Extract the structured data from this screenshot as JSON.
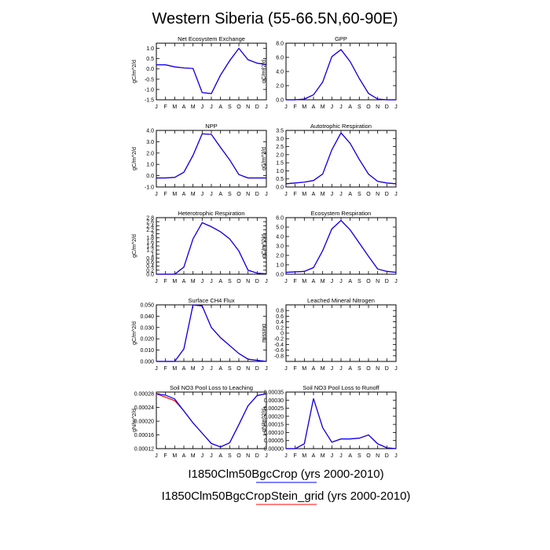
{
  "page_title": "Western Siberia (55-66.5N,60-90E)",
  "months": [
    "J",
    "F",
    "M",
    "A",
    "M",
    "J",
    "J",
    "A",
    "S",
    "O",
    "N",
    "D",
    "J"
  ],
  "legend": [
    {
      "label": "I1850Clm50BgcCrop (yrs 2000-2010)",
      "color": "#0000ff"
    },
    {
      "label": "I1850Clm50BgcCropStein_grid (yrs 2000-2010)",
      "color": "#ff0000"
    }
  ],
  "chart_data": [
    {
      "type": "line",
      "title": "Net Ecosystem Exchange",
      "ylabel": "gC/m^2/d",
      "ylim": [
        -1.5,
        1.25
      ],
      "yticks": [
        "1.0",
        "0.5",
        "0.0",
        "-0.5",
        "-1.0",
        "-1.5"
      ],
      "ytick_values": [
        1.0,
        0.5,
        0.0,
        -0.5,
        -1.0,
        -1.5
      ],
      "series": [
        {
          "values": [
            0.2,
            0.2,
            0.1,
            0.05,
            0.02,
            -1.15,
            -1.2,
            -0.3,
            0.4,
            1.0,
            0.45,
            0.28,
            0.22
          ]
        },
        {
          "values": [
            0.2,
            0.2,
            0.1,
            0.05,
            0.02,
            -1.15,
            -1.2,
            -0.3,
            0.4,
            1.0,
            0.45,
            0.28,
            0.22
          ]
        }
      ]
    },
    {
      "type": "line",
      "title": "GPP",
      "ylabel": "gC/m^2/d",
      "ylim": [
        0,
        8
      ],
      "yticks": [
        "8.0",
        "6.0",
        "4.0",
        "2.0",
        "0.0"
      ],
      "ytick_values": [
        8,
        6,
        4,
        2,
        0
      ],
      "series": [
        {
          "values": [
            0.0,
            0.0,
            0.1,
            0.7,
            2.5,
            6.1,
            7.1,
            5.4,
            3.0,
            0.9,
            0.1,
            0.0,
            0.0
          ]
        },
        {
          "values": [
            0.0,
            0.0,
            0.1,
            0.7,
            2.5,
            6.1,
            7.1,
            5.4,
            3.0,
            0.9,
            0.1,
            0.0,
            0.0
          ]
        }
      ]
    },
    {
      "type": "line",
      "title": "NPP",
      "ylabel": "gC/m^2/d",
      "ylim": [
        -1.0,
        4.0
      ],
      "yticks": [
        "4.0",
        "3.0",
        "2.0",
        "1.0",
        "0.0",
        "-1.0"
      ],
      "ytick_values": [
        4,
        3,
        2,
        1,
        0,
        -1
      ],
      "series": [
        {
          "values": [
            -0.2,
            -0.2,
            -0.15,
            0.3,
            1.8,
            3.7,
            3.65,
            2.5,
            1.4,
            0.1,
            -0.2,
            -0.2,
            -0.2
          ]
        },
        {
          "values": [
            -0.2,
            -0.2,
            -0.15,
            0.3,
            1.8,
            3.7,
            3.65,
            2.5,
            1.4,
            0.1,
            -0.2,
            -0.2,
            -0.2
          ]
        }
      ]
    },
    {
      "type": "line",
      "title": "Autotrophic Respiration",
      "ylabel": "gC/m^2/d",
      "ylim": [
        0,
        3.5
      ],
      "yticks": [
        "3.5",
        "3.0",
        "2.5",
        "2.0",
        "1.5",
        "1.0",
        "0.5",
        "0.0"
      ],
      "ytick_values": [
        3.5,
        3,
        2.5,
        2,
        1.5,
        1,
        0.5,
        0
      ],
      "series": [
        {
          "values": [
            0.2,
            0.25,
            0.3,
            0.4,
            0.8,
            2.3,
            3.35,
            2.7,
            1.7,
            0.8,
            0.35,
            0.25,
            0.2
          ]
        },
        {
          "values": [
            0.2,
            0.25,
            0.3,
            0.4,
            0.8,
            2.3,
            3.35,
            2.7,
            1.7,
            0.8,
            0.35,
            0.25,
            0.2
          ]
        }
      ]
    },
    {
      "type": "line",
      "title": "Heterotrophic Respiration",
      "ylabel": "gC/m^2/d",
      "ylim": [
        0,
        2.8
      ],
      "yticks": [
        "2.8",
        "2.6",
        "2.4",
        "2.2",
        "2",
        "1.8",
        "1.6",
        "1.4",
        "1.2",
        "1",
        "0.8",
        "0.6",
        "0.4",
        "0.2",
        "0.0"
      ],
      "ytick_values": [
        2.8,
        2.6,
        2.4,
        2.2,
        2.0,
        1.8,
        1.6,
        1.4,
        1.2,
        1.0,
        0.8,
        0.6,
        0.4,
        0.2,
        0.0
      ],
      "series": [
        {
          "values": [
            0.0,
            0.0,
            0.0,
            0.35,
            1.75,
            2.55,
            2.35,
            2.1,
            1.75,
            1.15,
            0.2,
            0.05,
            0.02
          ]
        },
        {
          "values": [
            0.0,
            0.0,
            0.0,
            0.35,
            1.75,
            2.55,
            2.35,
            2.1,
            1.75,
            1.15,
            0.2,
            0.05,
            0.02
          ]
        }
      ]
    },
    {
      "type": "line",
      "title": "Ecosystem Respiration",
      "ylabel": "gC/m^2/d",
      "ylim": [
        0,
        6
      ],
      "yticks": [
        "6.0",
        "5.0",
        "4.0",
        "3.0",
        "2.0",
        "1.0",
        "0.0"
      ],
      "ytick_values": [
        6,
        5,
        4,
        3,
        2,
        1,
        0
      ],
      "series": [
        {
          "values": [
            0.2,
            0.25,
            0.3,
            0.7,
            2.5,
            4.8,
            5.7,
            4.7,
            3.3,
            1.9,
            0.55,
            0.3,
            0.2
          ]
        },
        {
          "values": [
            0.2,
            0.25,
            0.3,
            0.7,
            2.5,
            4.8,
            5.7,
            4.7,
            3.3,
            1.9,
            0.55,
            0.3,
            0.2
          ]
        }
      ]
    },
    {
      "type": "line",
      "title": "Surface CH4 Flux",
      "ylabel": "gC/m^2/d",
      "ylim": [
        0,
        0.05
      ],
      "yticks": [
        "0.050",
        "0.040",
        "0.030",
        "0.020",
        "0.010",
        "0.000"
      ],
      "ytick_values": [
        0.05,
        0.04,
        0.03,
        0.02,
        0.01,
        0.0
      ],
      "series": [
        {
          "values": [
            0.0,
            0.0,
            0.0,
            0.011,
            0.05,
            0.049,
            0.03,
            0.021,
            0.014,
            0.007,
            0.002,
            0.001,
            0.0
          ]
        },
        {
          "values": [
            0.0,
            0.0,
            0.0,
            0.011,
            0.05,
            0.049,
            0.03,
            0.021,
            0.014,
            0.007,
            0.002,
            0.001,
            0.0
          ]
        }
      ]
    },
    {
      "type": "line",
      "title": "Leached Mineral Nitrogen",
      "ylabel": "missing",
      "ylim": [
        -1.0,
        1.0
      ],
      "yticks": [
        "0.8",
        "0.6",
        "0.4",
        "0.2",
        "0",
        "-0.2",
        "-0.4",
        "-0.6",
        "-0.8"
      ],
      "ytick_values": [
        0.8,
        0.6,
        0.4,
        0.2,
        0,
        -0.2,
        -0.4,
        -0.6,
        -0.8
      ],
      "series": []
    },
    {
      "type": "line",
      "title": "Soil NO3 Pool Loss to Leaching",
      "ylabel": "gN/m^2/d",
      "ylim": [
        0.00012,
        0.000285
      ],
      "yticks": [
        "0.00028",
        "0.00024",
        "0.00020",
        "0.00016",
        "0.00012"
      ],
      "ytick_values": [
        0.00028,
        0.00024,
        0.0002,
        0.00016,
        0.00012
      ],
      "series": [
        {
          "values": [
            0.00028,
            0.000276,
            0.000265,
            0.00023,
            0.000195,
            0.000165,
            0.000135,
            0.000125,
            0.000137,
            0.00019,
            0.000245,
            0.000275,
            0.00028
          ]
        },
        {
          "values": [
            0.00028,
            0.00027,
            0.00026,
            0.00023,
            0.000195,
            0.000165,
            0.000135,
            0.000125,
            0.000137,
            0.00019,
            0.000245,
            0.000275,
            0.00028
          ]
        }
      ]
    },
    {
      "type": "line",
      "title": "Soil NO3 Pool Loss to Runoff",
      "ylabel": "gN/m^2/d",
      "ylim": [
        0,
        0.00035
      ],
      "yticks": [
        "0.00035",
        "0.00030",
        "0.00025",
        "0.00020",
        "0.00015",
        "0.00010",
        "0.00005",
        "0.00000"
      ],
      "ytick_values": [
        0.00035,
        0.0003,
        0.00025,
        0.0002,
        0.00015,
        0.0001,
        5e-05,
        0.0
      ],
      "series": [
        {
          "values": [
            0.0,
            0.0,
            3e-05,
            0.00031,
            0.00013,
            4e-05,
            6e-05,
            6e-05,
            6.5e-05,
            8.5e-05,
            3e-05,
            5e-06,
            0.0
          ]
        },
        {
          "values": [
            0.0,
            0.0,
            3e-05,
            0.00031,
            0.00013,
            4e-05,
            6e-05,
            6e-05,
            6.5e-05,
            8.5e-05,
            3e-05,
            5e-06,
            0.0
          ]
        }
      ]
    }
  ]
}
